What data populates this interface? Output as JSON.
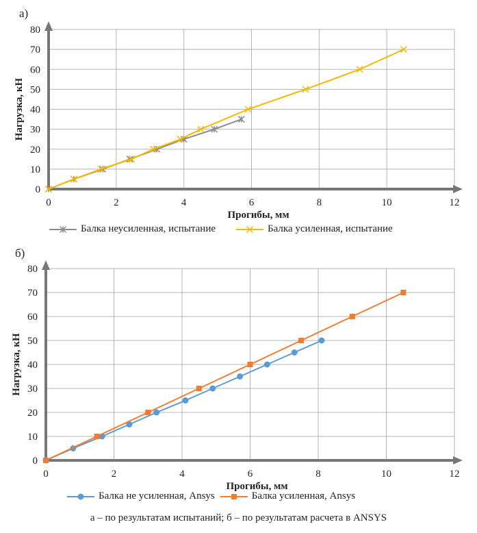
{
  "caption": "а – по результатам испытаний; б – по результатам расчета в ANSYS",
  "chart_data": [
    {
      "type": "line",
      "panel_label": "а)",
      "xlabel": "Прогибы, мм",
      "ylabel": "Нагрузка, кН",
      "xlim": [
        0,
        12
      ],
      "ylim": [
        0,
        80
      ],
      "xticks": [
        "0",
        "2",
        "4",
        "6",
        "8",
        "10",
        "12"
      ],
      "yticks": [
        "0",
        "10",
        "20",
        "30",
        "40",
        "50",
        "60",
        "70",
        "80"
      ],
      "grid": true,
      "legend_position": "bottom",
      "series": [
        {
          "name": "Балка неусиленная, испытание",
          "color": "#8c8c8c",
          "marker": "star",
          "points": [
            [
              0,
              0
            ],
            [
              0.75,
              5
            ],
            [
              1.6,
              10
            ],
            [
              2.4,
              15
            ],
            [
              3.2,
              20
            ],
            [
              4.0,
              25
            ],
            [
              4.9,
              30
            ],
            [
              5.7,
              35
            ]
          ]
        },
        {
          "name": "Балка усиленная, испытание",
          "color": "#f5b800",
          "marker": "x",
          "points": [
            [
              0,
              0
            ],
            [
              0.75,
              5
            ],
            [
              1.55,
              10
            ],
            [
              2.45,
              15
            ],
            [
              3.1,
              20
            ],
            [
              3.9,
              25
            ],
            [
              4.5,
              30
            ],
            [
              5.9,
              40
            ],
            [
              7.6,
              50
            ],
            [
              9.2,
              60
            ],
            [
              10.5,
              70
            ]
          ]
        }
      ]
    },
    {
      "type": "line",
      "panel_label": "б)",
      "xlabel": "Прогибы, мм",
      "ylabel": "Нагрузка, кН",
      "xlim": [
        0,
        12
      ],
      "ylim": [
        0,
        80
      ],
      "xticks": [
        "0",
        "2",
        "4",
        "6",
        "8",
        "10",
        "12"
      ],
      "yticks": [
        "0",
        "10",
        "20",
        "30",
        "40",
        "50",
        "60",
        "70",
        "80"
      ],
      "grid": true,
      "legend_position": "bottom",
      "series": [
        {
          "name": "Балка не усиленная, Ansys",
          "color": "#5b9bd5",
          "marker": "circle",
          "points": [
            [
              0,
              0
            ],
            [
              0.8,
              5
            ],
            [
              1.65,
              10
            ],
            [
              2.45,
              15
            ],
            [
              3.25,
              20
            ],
            [
              4.1,
              25
            ],
            [
              4.9,
              30
            ],
            [
              5.7,
              35
            ],
            [
              6.5,
              40
            ],
            [
              7.3,
              45
            ],
            [
              8.1,
              50
            ]
          ]
        },
        {
          "name": "Балка усиленная, Ansys",
          "color": "#ed7d31",
          "marker": "square",
          "points": [
            [
              0,
              0
            ],
            [
              1.5,
              10
            ],
            [
              3.0,
              20
            ],
            [
              4.5,
              30
            ],
            [
              6.0,
              40
            ],
            [
              7.5,
              50
            ],
            [
              9.0,
              60
            ],
            [
              10.5,
              70
            ]
          ]
        }
      ]
    }
  ]
}
